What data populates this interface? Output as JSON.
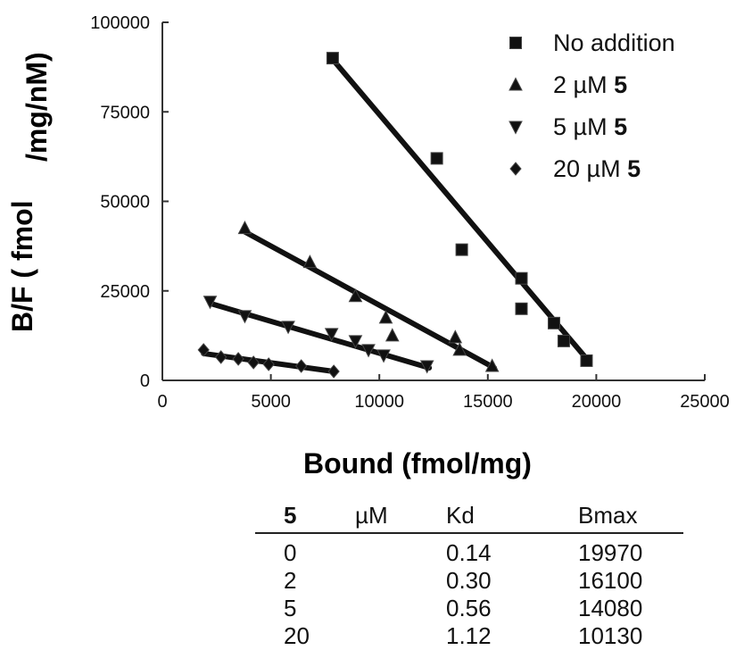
{
  "chart_data": {
    "type": "scatter",
    "ylabel_left": "B/F ( fmol",
    "ylabel_right": "/mg/nM)",
    "xlabel": "Bound (fmol/mg)",
    "xlim": [
      0,
      25000
    ],
    "ylim": [
      0,
      100000
    ],
    "x_ticks": [
      0,
      5000,
      10000,
      15000,
      20000,
      25000
    ],
    "y_ticks": [
      0,
      25000,
      50000,
      75000,
      100000
    ],
    "x_tick_labels": [
      "0",
      "5000",
      "10000",
      "15000",
      "20000",
      "25000"
    ],
    "y_tick_labels": [
      "0",
      "25000",
      "50000",
      "75000",
      "100000"
    ],
    "legend_position": "top-right",
    "series": [
      {
        "name": "No addition",
        "name_bold": "",
        "marker": "square",
        "points": [
          [
            7850,
            90000
          ],
          [
            12650,
            62000
          ],
          [
            13800,
            36500
          ],
          [
            16550,
            28500
          ],
          [
            16550,
            20000
          ],
          [
            18050,
            16000
          ],
          [
            18500,
            11000
          ],
          [
            19550,
            5500
          ]
        ],
        "fit": [
          [
            7800,
            90000
          ],
          [
            19700,
            5000
          ]
        ]
      },
      {
        "name": "2 µM ",
        "name_bold": "5",
        "marker": "triangle-up",
        "points": [
          [
            3800,
            42500
          ],
          [
            6800,
            33000
          ],
          [
            8900,
            23500
          ],
          [
            10300,
            17500
          ],
          [
            10600,
            12500
          ],
          [
            13500,
            12000
          ],
          [
            13700,
            8500
          ],
          [
            15200,
            4000
          ]
        ],
        "fit": [
          [
            3800,
            41500
          ],
          [
            15300,
            3500
          ]
        ]
      },
      {
        "name": "5 µM ",
        "name_bold": "5",
        "marker": "triangle-down",
        "points": [
          [
            2200,
            22000
          ],
          [
            3800,
            18000
          ],
          [
            5800,
            15000
          ],
          [
            7800,
            13000
          ],
          [
            8900,
            11000
          ],
          [
            9500,
            8500
          ],
          [
            10200,
            7000
          ],
          [
            12200,
            4000
          ]
        ],
        "fit": [
          [
            2200,
            21500
          ],
          [
            12300,
            3500
          ]
        ]
      },
      {
        "name": "20 µM ",
        "name_bold": "5",
        "marker": "diamond",
        "points": [
          [
            1900,
            8500
          ],
          [
            2700,
            6500
          ],
          [
            3500,
            6000
          ],
          [
            4200,
            5000
          ],
          [
            4900,
            4500
          ],
          [
            6400,
            4000
          ],
          [
            7900,
            2500
          ]
        ],
        "fit": [
          [
            1900,
            7500
          ],
          [
            7900,
            2500
          ]
        ]
      }
    ]
  },
  "table": {
    "headers": [
      "5",
      "µM",
      "Kd",
      "Bmax"
    ],
    "rows": [
      [
        "0",
        "0.14",
        "19970"
      ],
      [
        "2",
        "0.30",
        "16100"
      ],
      [
        "5",
        "0.56",
        "14080"
      ],
      [
        "20",
        "1.12",
        "10130"
      ]
    ]
  }
}
